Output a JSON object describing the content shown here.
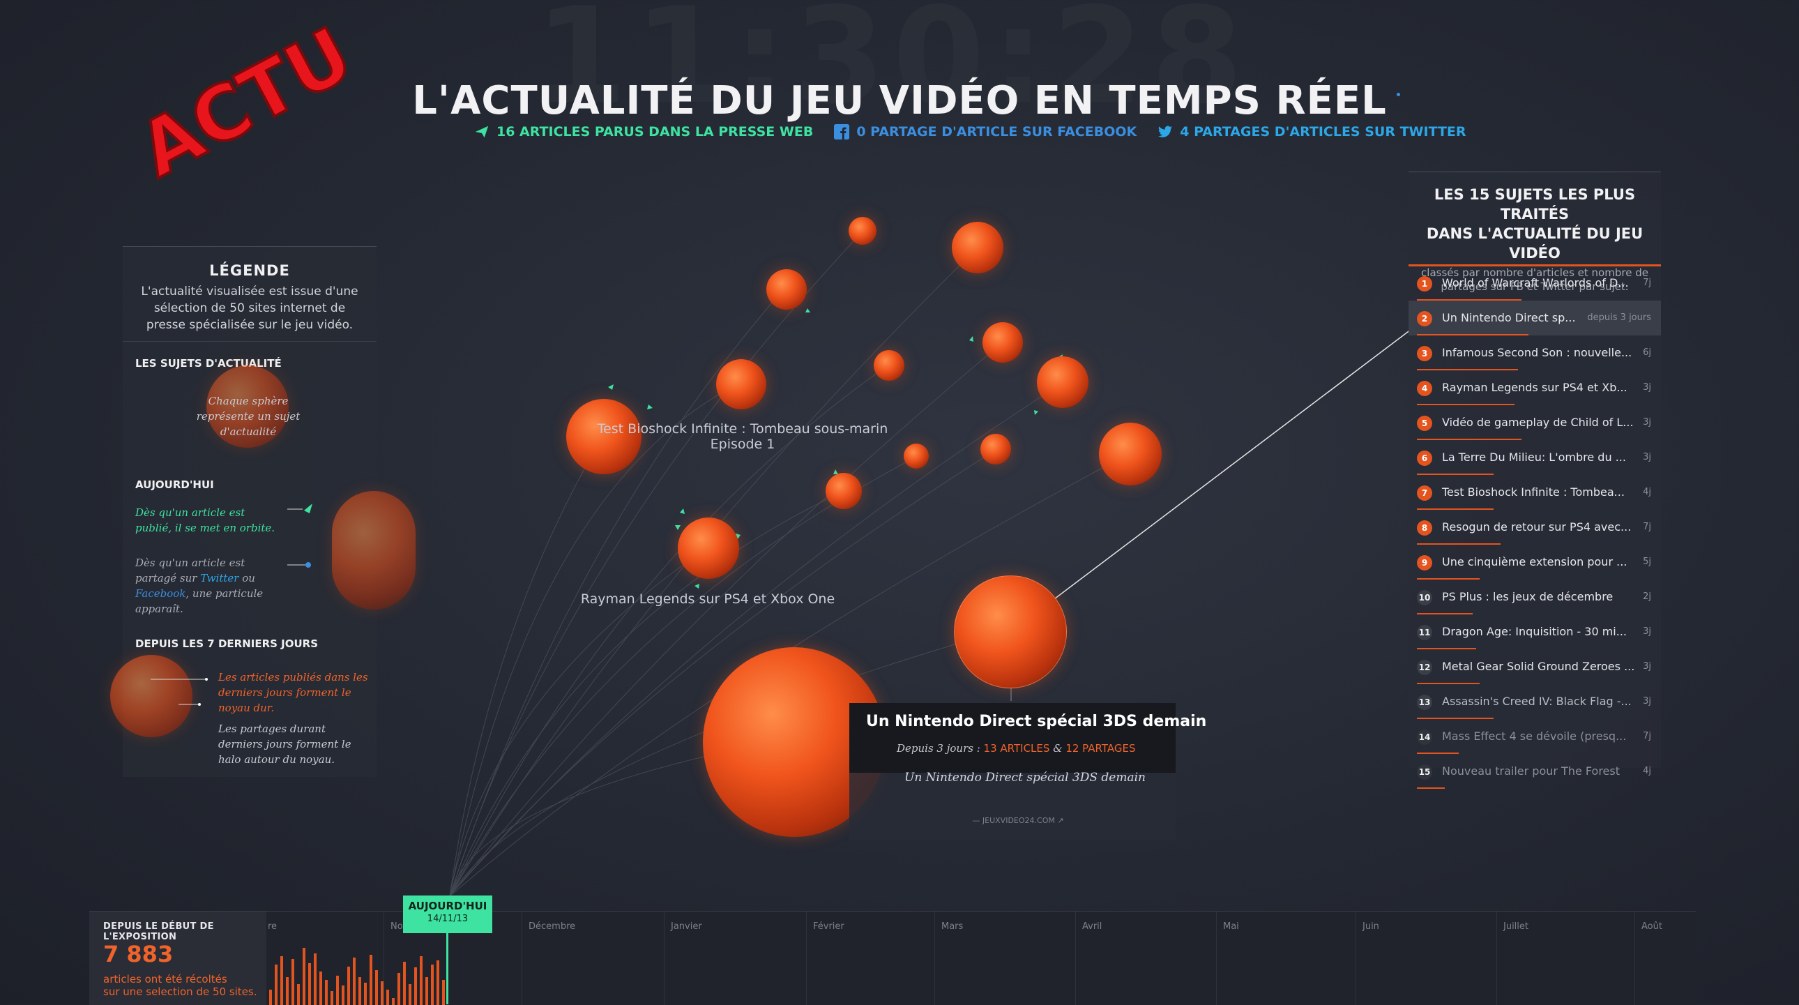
{
  "header": {
    "clock": "11:30:28",
    "title": "L'ACTUALITÉ DU JEU VIDÉO EN TEMPS RÉEL",
    "stats": {
      "press": "16 ARTICLES PARUS DANS LA PRESSE WEB",
      "facebook": "0 PARTAGE D'ARTICLE SUR FACEBOOK",
      "twitter": "4 PARTAGES D'ARTICLES SUR TWITTER"
    },
    "logo_text": "ACTU"
  },
  "colors": {
    "accent": "#f0541c",
    "green": "#3ee3a1",
    "facebook_blue": "#3b8fe0",
    "twitter_blue": "#2ca7e8",
    "panel_bg": "#2a2e38"
  },
  "legend": {
    "title": "LÉGENDE",
    "description": "L'actualité visualisée est issue d'une sélection de 50 sites internet de presse spécialisée sur le jeu vidéo.",
    "section_subjects": "LES SUJETS D'ACTUALITÉ",
    "subjects_note": "Chaque sphère représente un sujet d'actualité",
    "section_today": "AUJOURD'HUI",
    "today_published": "Dès qu'un article est publié, il se met en orbite.",
    "today_shared_prefix": "Dès qu'un article est partagé sur ",
    "today_shared_twitter": "Twitter",
    "today_shared_or": " ou ",
    "today_shared_facebook": "Facebook",
    "today_shared_suffix": ", une particule apparaît.",
    "section_week": "DEPUIS LES 7 DERNIERS JOURS",
    "week_articles": "Les articles publiés dans les derniers jours forment le noyau dur.",
    "week_shares": "Les partages durant derniers jours forment le halo autour du noyau."
  },
  "ranking": {
    "title_line1": "LES 15 SUJETS LES PLUS TRAITÉS",
    "title_line2": "DANS L'ACTUALITÉ DU JEU VIDÉO",
    "subtitle": "classés par nombre d'articles et nombre de partages sur FB et Twitter par sujet.",
    "items": [
      {
        "rank": "1",
        "label": "World of Warcraft Warlords of D...",
        "days": "7j"
      },
      {
        "rank": "2",
        "label": "Un Nintendo Direct sp...",
        "days": "depuis 3 jours"
      },
      {
        "rank": "3",
        "label": "Infamous Second Son : nouvelle...",
        "days": "6j"
      },
      {
        "rank": "4",
        "label": "Rayman Legends sur PS4 et Xb...",
        "days": "3j"
      },
      {
        "rank": "5",
        "label": "Vidéo de gameplay de Child of L...",
        "days": "3j"
      },
      {
        "rank": "6",
        "label": "La Terre Du Milieu: L'ombre du ...",
        "days": "3j"
      },
      {
        "rank": "7",
        "label": "Test Bioshock Infinite : Tombea...",
        "days": "4j"
      },
      {
        "rank": "8",
        "label": "Resogun de retour sur PS4 avec...",
        "days": "7j"
      },
      {
        "rank": "9",
        "label": "Une cinquième extension pour ...",
        "days": "5j"
      },
      {
        "rank": "10",
        "label": "PS Plus : les jeux de décembre",
        "days": "2j"
      },
      {
        "rank": "11",
        "label": "Dragon Age: Inquisition - 30 mi...",
        "days": "3j"
      },
      {
        "rank": "12",
        "label": "Metal Gear Solid Ground Zeroes ...",
        "days": "3j"
      },
      {
        "rank": "13",
        "label": "Assassin's Creed IV: Black Flag -...",
        "days": "3j"
      },
      {
        "rank": "14",
        "label": "Mass Effect 4 se dévoile (presq...",
        "days": "7j"
      },
      {
        "rank": "15",
        "label": "Nouveau trailer pour The Forest",
        "days": "4j"
      }
    ]
  },
  "map": {
    "label_bioshock_line1": "Test Bioshock Infinite : Tombeau sous-marin",
    "label_bioshock_line2": "Episode 1",
    "label_rayman": "Rayman Legends sur PS4 et Xbox One"
  },
  "popup": {
    "title": "Un Nintendo Direct spécial 3DS demain",
    "meta_prefix": "Depuis 3 jours : ",
    "articles": "13 ARTICLES",
    "amp": " & ",
    "shares": "12 PARTAGES",
    "article_title": "Un Nintendo Direct spécial 3DS demain",
    "source": "— JEUXVIDEO24.COM"
  },
  "timeline": {
    "since_label": "DEPUIS LE DÉBUT DE L'EXPOSITION",
    "count": "7 883",
    "count_text_line1": "articles ont été récoltés",
    "count_text_line2": "sur une selection de 50 sites.",
    "today_label": "AUJOURD'HUI",
    "today_date": "14/11/13",
    "months": [
      "re",
      "No",
      "Décembre",
      "Janvier",
      "Février",
      "Mars",
      "Avril",
      "Mai",
      "Juin",
      "Juillet",
      "Août"
    ],
    "bars": [
      22,
      58,
      70,
      40,
      66,
      30,
      82,
      60,
      74,
      48,
      36,
      20,
      42,
      28,
      55,
      68,
      40,
      32,
      72,
      50,
      34,
      22,
      10,
      46,
      62,
      30,
      54,
      70,
      40,
      58,
      64,
      36
    ]
  }
}
